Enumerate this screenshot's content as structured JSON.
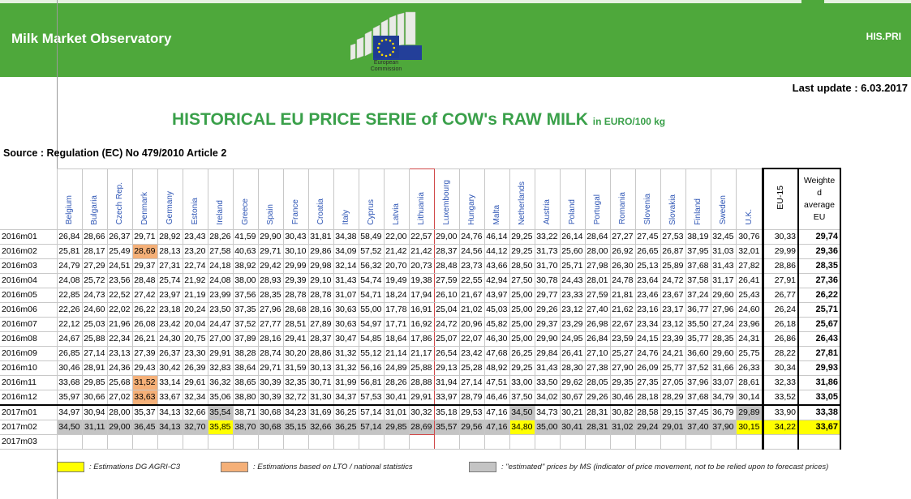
{
  "header": {
    "app_title": "Milk Market Observatory",
    "right_label": "HIS.PRI",
    "logo_caption_1": "European",
    "logo_caption_2": "Commission"
  },
  "last_update": "Last update : 6.03.2017",
  "title": "HISTORICAL EU PRICE SERIE of COW's RAW MILK",
  "title_unit": "in EURO/100 kg",
  "source": "Source : Regulation (EC) No 479/2010 Article 2",
  "columns": [
    "Belgium",
    "Bulgaria",
    "Czech Rep.",
    "Denmark",
    "Germany",
    "Estonia",
    "Ireland",
    "Greece",
    "Spain",
    "France",
    "Croatia",
    "Italy",
    "Cyprus",
    "Latvia",
    "Lithuania",
    "Luxembourg",
    "Hungary",
    "Malta",
    "Netherlands",
    "Austria",
    "Poland",
    "Portugal",
    "Romania",
    "Slovenia",
    "Slovakia",
    "Finland",
    "Sweden",
    "U.K."
  ],
  "eu15_label": "EU-15",
  "wavg_label": [
    "Weighte",
    "d",
    "average",
    "EU"
  ],
  "colors": {
    "banner": "#4ea83b",
    "title": "#3aa04a",
    "estimation_dg": "#ffff00",
    "estimation_lto": "#f5b078",
    "estimated_ms": "#c4c4c4"
  },
  "rows": [
    {
      "label": "2016m01",
      "values": [
        "26,84",
        "28,66",
        "26,37",
        "29,71",
        "28,92",
        "23,43",
        "28,26",
        "41,59",
        "29,90",
        "30,43",
        "31,81",
        "34,38",
        "58,49",
        "22,00",
        "22,57",
        "29,00",
        "24,76",
        "46,14",
        "29,25",
        "33,22",
        "26,14",
        "28,64",
        "27,27",
        "27,45",
        "27,53",
        "38,19",
        "32,45",
        "30,76"
      ],
      "eu15": "30,33",
      "wavg": "29,74"
    },
    {
      "label": "2016m02",
      "values": [
        "25,81",
        "28,17",
        "25,49",
        "28,69",
        "28,13",
        "23,20",
        "27,58",
        "40,63",
        "29,71",
        "30,10",
        "29,86",
        "34,09",
        "57,52",
        "21,42",
        "21,42",
        "28,37",
        "24,56",
        "44,12",
        "29,25",
        "31,73",
        "25,60",
        "28,00",
        "26,92",
        "26,65",
        "26,87",
        "37,95",
        "31,03",
        "32,01"
      ],
      "eu15": "29,99",
      "wavg": "29,36"
    },
    {
      "label": "2016m03",
      "values": [
        "24,79",
        "27,29",
        "24,51",
        "29,37",
        "27,31",
        "22,74",
        "24,18",
        "38,92",
        "29,42",
        "29,99",
        "29,98",
        "32,14",
        "56,32",
        "20,70",
        "20,73",
        "28,48",
        "23,73",
        "43,66",
        "28,50",
        "31,70",
        "25,71",
        "27,98",
        "26,30",
        "25,13",
        "25,89",
        "37,68",
        "31,43",
        "27,82"
      ],
      "eu15": "28,86",
      "wavg": "28,35"
    },
    {
      "label": "2016m04",
      "values": [
        "24,08",
        "25,72",
        "23,56",
        "28,48",
        "25,74",
        "21,92",
        "24,08",
        "38,00",
        "28,93",
        "29,39",
        "29,10",
        "31,43",
        "54,74",
        "19,49",
        "19,38",
        "27,59",
        "22,55",
        "42,94",
        "27,50",
        "30,78",
        "24,43",
        "28,01",
        "24,78",
        "23,64",
        "24,72",
        "37,58",
        "31,17",
        "26,41"
      ],
      "eu15": "27,91",
      "wavg": "27,36"
    },
    {
      "label": "2016m05",
      "values": [
        "22,85",
        "24,73",
        "22,52",
        "27,42",
        "23,97",
        "21,19",
        "23,99",
        "37,56",
        "28,35",
        "28,78",
        "28,78",
        "31,07",
        "54,71",
        "18,24",
        "17,94",
        "26,10",
        "21,67",
        "43,97",
        "25,00",
        "29,77",
        "23,33",
        "27,59",
        "21,81",
        "23,46",
        "23,67",
        "37,24",
        "29,60",
        "25,43"
      ],
      "eu15": "26,77",
      "wavg": "26,22"
    },
    {
      "label": "2016m06",
      "values": [
        "22,26",
        "24,60",
        "22,02",
        "26,22",
        "23,18",
        "20,24",
        "23,50",
        "37,35",
        "27,96",
        "28,68",
        "28,16",
        "30,63",
        "55,00",
        "17,78",
        "16,91",
        "25,04",
        "21,02",
        "45,03",
        "25,00",
        "29,26",
        "23,12",
        "27,40",
        "21,62",
        "23,16",
        "23,17",
        "36,77",
        "27,96",
        "24,60"
      ],
      "eu15": "26,24",
      "wavg": "25,71"
    },
    {
      "label": "2016m07",
      "values": [
        "22,12",
        "25,03",
        "21,96",
        "26,08",
        "23,42",
        "20,04",
        "24,47",
        "37,52",
        "27,77",
        "28,51",
        "27,89",
        "30,63",
        "54,97",
        "17,71",
        "16,92",
        "24,72",
        "20,96",
        "45,82",
        "25,00",
        "29,37",
        "23,29",
        "26,98",
        "22,67",
        "23,34",
        "23,12",
        "35,50",
        "27,24",
        "23,96"
      ],
      "eu15": "26,18",
      "wavg": "25,67"
    },
    {
      "label": "2016m08",
      "values": [
        "24,67",
        "25,88",
        "22,34",
        "26,21",
        "24,30",
        "20,75",
        "27,00",
        "37,89",
        "28,16",
        "29,41",
        "28,37",
        "30,47",
        "54,85",
        "18,64",
        "17,86",
        "25,07",
        "22,07",
        "46,30",
        "25,00",
        "29,90",
        "24,95",
        "26,84",
        "23,59",
        "24,15",
        "23,39",
        "35,77",
        "28,35",
        "24,31"
      ],
      "eu15": "26,86",
      "wavg": "26,43"
    },
    {
      "label": "2016m09",
      "values": [
        "26,85",
        "27,14",
        "23,13",
        "27,39",
        "26,37",
        "23,30",
        "29,91",
        "38,28",
        "28,74",
        "30,20",
        "28,86",
        "31,32",
        "55,12",
        "21,14",
        "21,17",
        "26,54",
        "23,42",
        "47,68",
        "26,25",
        "29,84",
        "26,41",
        "27,10",
        "25,27",
        "24,76",
        "24,21",
        "36,60",
        "29,60",
        "25,75"
      ],
      "eu15": "28,22",
      "wavg": "27,81"
    },
    {
      "label": "2016m10",
      "values": [
        "30,46",
        "28,91",
        "24,36",
        "29,43",
        "30,42",
        "26,39",
        "32,83",
        "38,64",
        "29,71",
        "31,59",
        "30,13",
        "31,32",
        "56,16",
        "24,89",
        "25,88",
        "29,13",
        "25,28",
        "48,92",
        "29,25",
        "31,43",
        "28,30",
        "27,38",
        "27,90",
        "26,09",
        "25,77",
        "37,52",
        "31,66",
        "26,33"
      ],
      "eu15": "30,34",
      "wavg": "29,93"
    },
    {
      "label": "2016m11",
      "values": [
        "33,68",
        "29,85",
        "25,68",
        "31,52",
        "33,14",
        "29,61",
        "36,32",
        "38,65",
        "30,39",
        "32,35",
        "30,71",
        "31,99",
        "56,81",
        "28,26",
        "28,88",
        "31,94",
        "27,14",
        "47,51",
        "33,00",
        "33,50",
        "29,62",
        "28,05",
        "29,35",
        "27,35",
        "27,05",
        "37,96",
        "33,07",
        "28,61"
      ],
      "eu15": "32,33",
      "wavg": "31,86"
    },
    {
      "label": "2016m12",
      "values": [
        "35,97",
        "30,66",
        "27,02",
        "33,63",
        "33,67",
        "32,34",
        "35,06",
        "38,80",
        "30,39",
        "32,72",
        "31,30",
        "34,37",
        "57,53",
        "30,41",
        "29,91",
        "33,97",
        "28,79",
        "46,46",
        "37,50",
        "34,02",
        "30,67",
        "29,26",
        "30,46",
        "28,18",
        "28,29",
        "37,68",
        "34,79",
        "30,14"
      ],
      "eu15": "33,52",
      "wavg": "33,05"
    },
    {
      "label": "2017m01",
      "values": [
        "34,97",
        "30,94",
        "28,00",
        "35,37",
        "34,13",
        "32,66",
        "35,54",
        "38,71",
        "30,68",
        "34,23",
        "31,69",
        "36,25",
        "57,14",
        "31,01",
        "30,32",
        "35,18",
        "29,53",
        "47,16",
        "34,50",
        "34,73",
        "30,21",
        "28,31",
        "30,82",
        "28,58",
        "29,15",
        "37,45",
        "36,79",
        "29,89"
      ],
      "eu15": "33,90",
      "wavg": "33,38"
    },
    {
      "label": "2017m02",
      "values": [
        "34,50",
        "31,11",
        "29,00",
        "36,45",
        "34,13",
        "32,70",
        "35,85",
        "38,70",
        "30,68",
        "35,15",
        "32,66",
        "36,25",
        "57,14",
        "29,85",
        "28,69",
        "35,57",
        "29,56",
        "47,16",
        "34,80",
        "35,00",
        "30,41",
        "28,31",
        "31,02",
        "29,24",
        "29,01",
        "37,40",
        "37,90",
        "30,15"
      ],
      "eu15": "34,22",
      "wavg": "33,67"
    },
    {
      "label": "2017m03",
      "values": [
        "",
        "",
        "",
        "",
        "",
        "",
        "",
        "",
        "",
        "",
        "",
        "",
        "",
        "",
        "",
        "",
        "",
        "",
        "",
        "",
        "",
        "",
        "",
        "",
        "",
        "",
        "",
        ""
      ],
      "eu15": "",
      "wavg": ""
    }
  ],
  "legend": {
    "dg": ": Estimations DG AGRI-C3",
    "lto": ": Estimations based on LTO / national statistics",
    "ms": ": \"estimated\" prices by MS (indicator of price movement, not to be relied upon to forecast prices)"
  }
}
